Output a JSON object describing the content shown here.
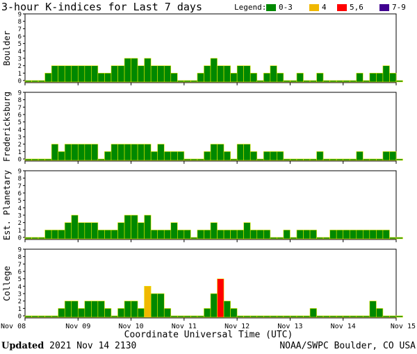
{
  "title": "3-hour K-indices for Last 7 days",
  "legend": {
    "label": "Legend:",
    "items": [
      {
        "label": "0-3",
        "color": "#008800"
      },
      {
        "label": "4",
        "color": "#f0b800"
      },
      {
        "label": "5,6",
        "color": "#ff0000"
      },
      {
        "label": "7-9",
        "color": "#400090"
      }
    ]
  },
  "footer": {
    "updated_label": "Updated",
    "updated_value": "2021 Nov 14 2130",
    "source": "NOAA/SWPC Boulder, CO USA"
  },
  "chart_data": {
    "type": "bar",
    "title": "3-hour K-indices for Last 7 days",
    "xlabel": "Coordinate Universal Time (UTC)",
    "x_ticks": [
      "Nov 08",
      "Nov 09",
      "Nov 10",
      "Nov 11",
      "Nov 12",
      "Nov 13",
      "Nov 14",
      "Nov 15"
    ],
    "y_ticks": [
      "0",
      "1",
      "2",
      "3",
      "4",
      "5",
      "6",
      "7",
      "8",
      "9"
    ],
    "ylim": [
      0,
      9
    ],
    "bars_per_day": 8,
    "color_scale": {
      "0-3": "#008800",
      "4": "#f0b800",
      "5,6": "#ff0000",
      "7-9": "#400090"
    },
    "series": [
      {
        "name": "Boulder",
        "values": [
          0,
          0,
          0,
          1,
          2,
          2,
          2,
          2,
          2,
          2,
          2,
          1,
          1,
          2,
          2,
          3,
          3,
          2,
          3,
          2,
          2,
          2,
          1,
          0,
          0,
          0,
          1,
          2,
          3,
          2,
          2,
          1,
          2,
          2,
          1,
          0,
          1,
          2,
          1,
          0,
          0,
          1,
          0,
          0,
          1,
          0,
          0,
          0,
          0,
          0,
          1,
          0,
          1,
          1,
          2,
          1,
          0
        ]
      },
      {
        "name": "Fredericksburg",
        "values": [
          0,
          0,
          0,
          0,
          2,
          1,
          2,
          2,
          2,
          2,
          2,
          0,
          1,
          2,
          2,
          2,
          2,
          2,
          2,
          1,
          2,
          1,
          1,
          1,
          0,
          0,
          0,
          1,
          2,
          2,
          1,
          0,
          2,
          2,
          1,
          0,
          1,
          1,
          1,
          0,
          0,
          0,
          0,
          0,
          1,
          0,
          0,
          0,
          0,
          0,
          1,
          0,
          0,
          0,
          1,
          1,
          0
        ]
      },
      {
        "name": "Est. Planetary",
        "values": [
          0,
          0,
          0,
          1,
          1,
          1,
          2,
          3,
          2,
          2,
          2,
          1,
          1,
          1,
          2,
          3,
          3,
          2,
          3,
          1,
          1,
          1,
          2,
          1,
          1,
          0,
          1,
          1,
          2,
          1,
          1,
          1,
          1,
          2,
          1,
          1,
          1,
          0,
          0,
          1,
          0,
          1,
          1,
          1,
          0,
          0,
          1,
          1,
          1,
          1,
          1,
          1,
          1,
          1,
          1,
          0,
          0
        ]
      },
      {
        "name": "College",
        "values": [
          0,
          0,
          0,
          0,
          0,
          1,
          2,
          2,
          1,
          2,
          2,
          2,
          1,
          0,
          1,
          2,
          2,
          1,
          4,
          3,
          3,
          1,
          0,
          0,
          0,
          0,
          0,
          1,
          3,
          5,
          2,
          1,
          0,
          0,
          0,
          0,
          0,
          0,
          0,
          0,
          0,
          0,
          0,
          1,
          0,
          0,
          0,
          0,
          0,
          0,
          0,
          0,
          2,
          1,
          0,
          0,
          0
        ]
      }
    ]
  }
}
